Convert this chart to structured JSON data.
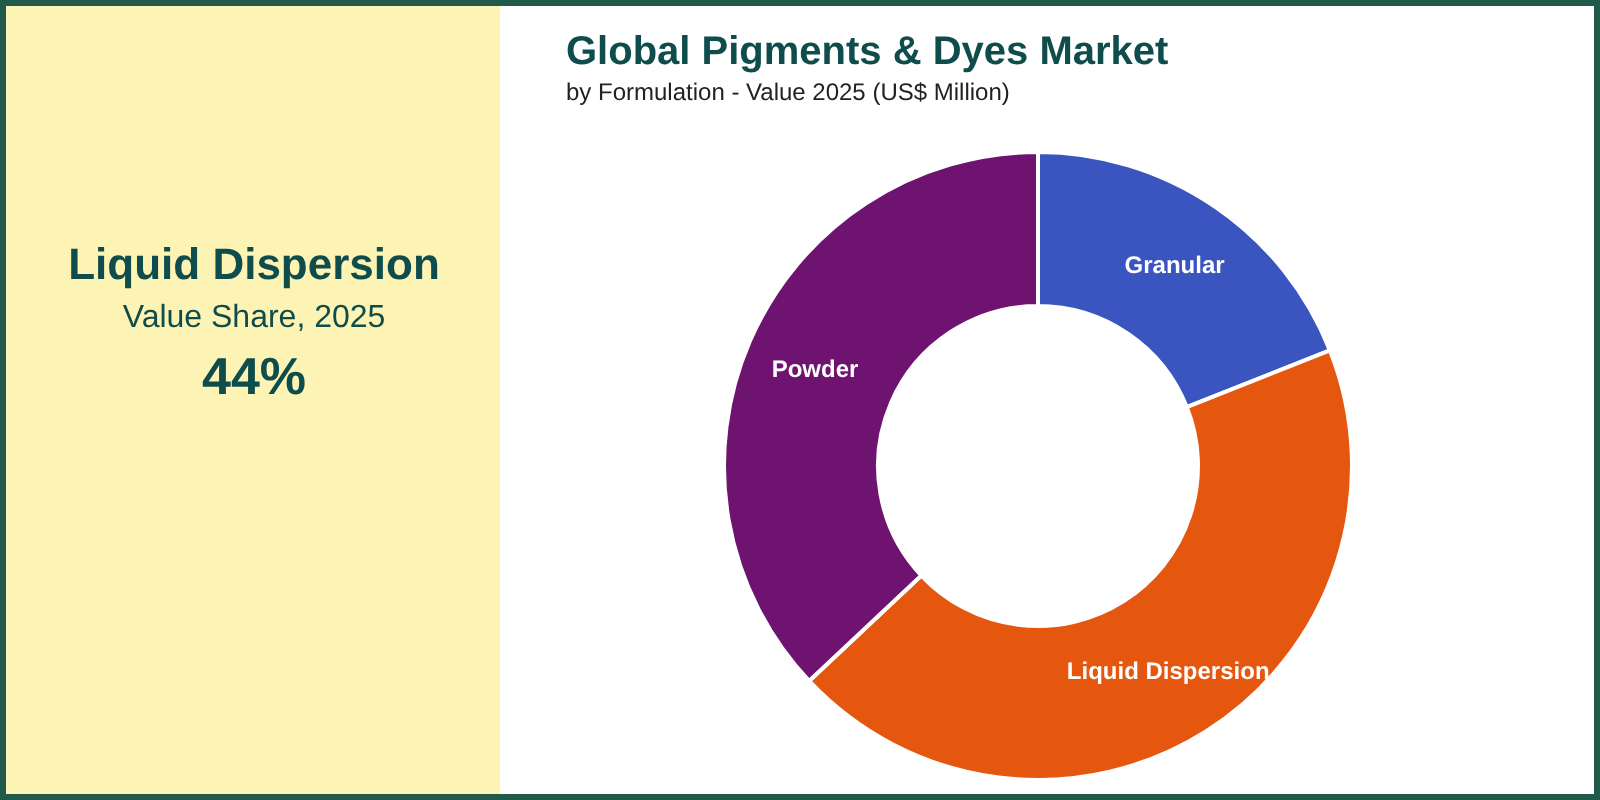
{
  "chart_data": {
    "type": "donut",
    "title": "Global Pigments & Dyes Market",
    "subtitle": "by Formulation - Value 2025 (US$ Million)",
    "categories": [
      "Granular",
      "Liquid Dispersion",
      "Powder"
    ],
    "values": [
      19,
      44,
      37
    ],
    "colors": [
      "#3a55bf",
      "#e5560f",
      "#6e1470"
    ],
    "annotations": [
      "Liquid Dispersion",
      "Value Share, 2025",
      "44%"
    ],
    "legend": false
  }
}
